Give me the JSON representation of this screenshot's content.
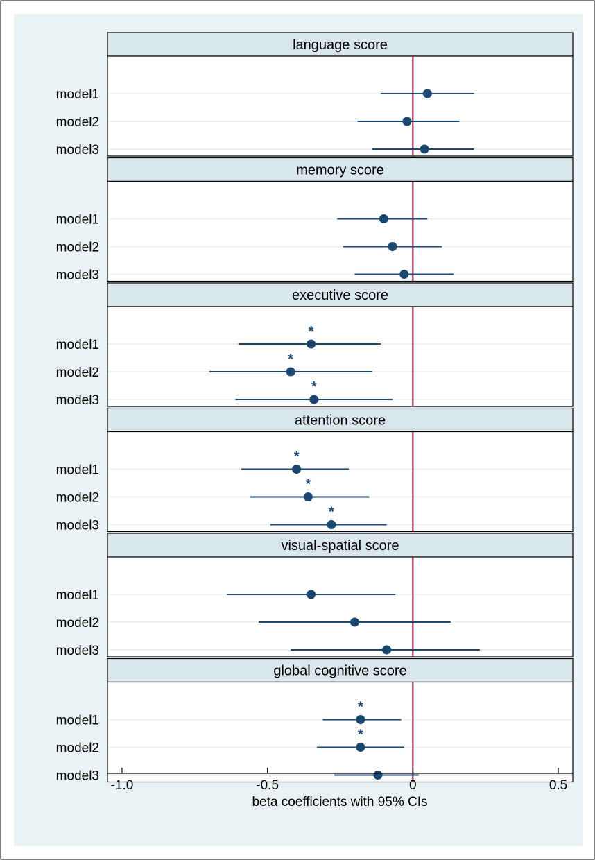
{
  "chart_data": {
    "type": "forest",
    "xlabel": "beta coefficients with 95% CIs",
    "xlim": [
      -1.05,
      0.55
    ],
    "xticks": [
      -1.0,
      -0.5,
      0,
      0.5
    ],
    "xtick_labels": [
      "-1.0",
      "-0.5",
      "0",
      "0.5"
    ],
    "reference_line": 0,
    "significance_marker": "*",
    "row_labels": [
      "model1",
      "model2",
      "model3"
    ],
    "colors": {
      "background": "#eaf2f3",
      "plot_area": "#ffffff",
      "strip": "#d9e6eb",
      "point": "#1a476f",
      "reference_line": "#90103a",
      "grid": "#eaf2f3",
      "frame": "#000000"
    },
    "panels": [
      {
        "title": "language score",
        "rows": [
          {
            "label": "model1",
            "beta": 0.05,
            "lower": -0.11,
            "upper": 0.21,
            "sig": false
          },
          {
            "label": "model2",
            "beta": -0.02,
            "lower": -0.19,
            "upper": 0.16,
            "sig": false
          },
          {
            "label": "model3",
            "beta": 0.04,
            "lower": -0.14,
            "upper": 0.21,
            "sig": false
          }
        ]
      },
      {
        "title": "memory score",
        "rows": [
          {
            "label": "model1",
            "beta": -0.1,
            "lower": -0.26,
            "upper": 0.05,
            "sig": false
          },
          {
            "label": "model2",
            "beta": -0.07,
            "lower": -0.24,
            "upper": 0.1,
            "sig": false
          },
          {
            "label": "model3",
            "beta": -0.03,
            "lower": -0.2,
            "upper": 0.14,
            "sig": false
          }
        ]
      },
      {
        "title": "executive score",
        "rows": [
          {
            "label": "model1",
            "beta": -0.35,
            "lower": -0.6,
            "upper": -0.11,
            "sig": true
          },
          {
            "label": "model2",
            "beta": -0.42,
            "lower": -0.7,
            "upper": -0.14,
            "sig": true
          },
          {
            "label": "model3",
            "beta": -0.34,
            "lower": -0.61,
            "upper": -0.07,
            "sig": true
          }
        ]
      },
      {
        "title": "attention score",
        "rows": [
          {
            "label": "model1",
            "beta": -0.4,
            "lower": -0.59,
            "upper": -0.22,
            "sig": true
          },
          {
            "label": "model2",
            "beta": -0.36,
            "lower": -0.56,
            "upper": -0.15,
            "sig": true
          },
          {
            "label": "model3",
            "beta": -0.28,
            "lower": -0.49,
            "upper": -0.09,
            "sig": true
          }
        ]
      },
      {
        "title": "visual-spatial score",
        "rows": [
          {
            "label": "model1",
            "beta": -0.35,
            "lower": -0.64,
            "upper": -0.06,
            "sig": false
          },
          {
            "label": "model2",
            "beta": -0.2,
            "lower": -0.53,
            "upper": 0.13,
            "sig": false
          },
          {
            "label": "model3",
            "beta": -0.09,
            "lower": -0.42,
            "upper": 0.23,
            "sig": false
          }
        ]
      },
      {
        "title": "global cognitive score",
        "rows": [
          {
            "label": "model1",
            "beta": -0.18,
            "lower": -0.31,
            "upper": -0.04,
            "sig": true
          },
          {
            "label": "model2",
            "beta": -0.18,
            "lower": -0.33,
            "upper": -0.03,
            "sig": true
          },
          {
            "label": "model3",
            "beta": -0.12,
            "lower": -0.27,
            "upper": 0.02,
            "sig": false
          }
        ]
      }
    ]
  }
}
